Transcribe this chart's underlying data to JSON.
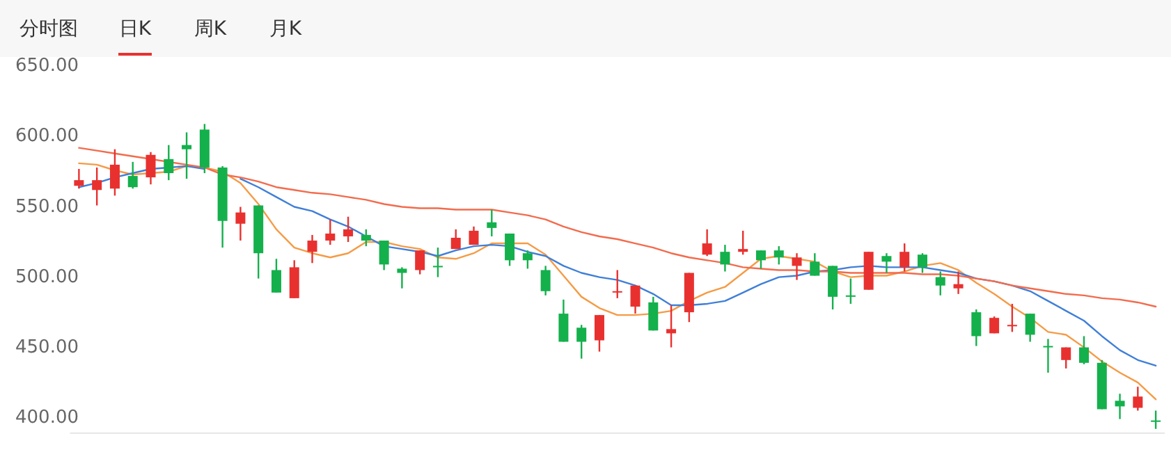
{
  "chart_data": {
    "type": "candlestick",
    "annotations": [
      "分时图",
      "日K",
      "周K",
      "月K"
    ],
    "categories": [
      null,
      null,
      null,
      null,
      null,
      null,
      null,
      null,
      null,
      null,
      null,
      null,
      null,
      null,
      null,
      null,
      null,
      null,
      null,
      null,
      null,
      null,
      null,
      null,
      null,
      null,
      null,
      null,
      null,
      null,
      null,
      null,
      null,
      null,
      null,
      null,
      null,
      null,
      null,
      null,
      null,
      null,
      null,
      null,
      null,
      null,
      null,
      null,
      null,
      null,
      null,
      null,
      null,
      null,
      null,
      null,
      null,
      null,
      null,
      null,
      null
    ],
    "ohlc": [
      [
        564,
        576,
        562,
        568
      ],
      [
        561,
        577,
        550,
        568
      ],
      [
        562,
        590,
        557,
        579
      ],
      [
        571,
        581,
        562,
        563
      ],
      [
        570,
        588,
        565,
        586
      ],
      [
        583,
        593,
        568,
        573
      ],
      [
        593,
        602,
        569,
        590
      ],
      [
        604,
        608,
        573,
        577
      ],
      [
        577,
        578,
        520,
        539
      ],
      [
        537,
        549,
        525,
        545
      ],
      [
        550,
        550,
        498,
        516
      ],
      [
        504,
        512,
        488,
        488
      ],
      [
        484,
        511,
        484,
        506
      ],
      [
        517,
        529,
        509,
        525
      ],
      [
        525,
        540,
        522,
        530
      ],
      [
        528,
        542,
        524,
        533
      ],
      [
        529,
        533,
        521,
        525
      ],
      [
        525,
        525,
        504,
        508
      ],
      [
        505,
        506,
        491,
        502
      ],
      [
        504,
        518,
        501,
        518
      ],
      [
        507,
        520,
        499,
        506
      ],
      [
        519,
        533,
        519,
        527
      ],
      [
        522,
        535,
        522,
        532
      ],
      [
        538,
        547,
        528,
        534
      ],
      [
        530,
        530,
        507,
        511
      ],
      [
        516,
        518,
        505,
        511
      ],
      [
        504,
        507,
        486,
        489
      ],
      [
        473,
        483,
        453,
        453
      ],
      [
        463,
        465,
        441,
        453
      ],
      [
        454,
        472,
        446,
        472
      ],
      [
        488,
        504,
        484,
        489
      ],
      [
        478,
        493,
        473,
        493
      ],
      [
        481,
        485,
        461,
        461
      ],
      [
        459,
        479,
        449,
        462
      ],
      [
        474,
        502,
        467,
        502
      ],
      [
        515,
        533,
        514,
        523
      ],
      [
        517,
        522,
        503,
        508
      ],
      [
        517,
        532,
        515,
        519
      ],
      [
        518,
        518,
        505,
        511
      ],
      [
        518,
        521,
        508,
        513
      ],
      [
        507,
        516,
        497,
        513
      ],
      [
        510,
        516,
        500,
        500
      ],
      [
        507,
        507,
        476,
        485
      ],
      [
        486,
        498,
        480,
        485
      ],
      [
        490,
        517,
        490,
        517
      ],
      [
        514,
        516,
        502,
        510
      ],
      [
        506,
        523,
        503,
        517
      ],
      [
        515,
        516,
        502,
        506
      ],
      [
        499,
        503,
        486,
        493
      ],
      [
        491,
        503,
        487,
        494
      ],
      [
        474,
        476,
        450,
        457
      ],
      [
        459,
        471,
        459,
        470
      ],
      [
        464,
        480,
        460,
        465
      ],
      [
        473,
        473,
        453,
        458
      ],
      [
        450,
        455,
        431,
        449
      ],
      [
        440,
        449,
        434,
        449
      ],
      [
        449,
        457,
        437,
        438
      ],
      [
        438,
        440,
        405,
        405
      ],
      [
        411,
        416,
        398,
        407
      ],
      [
        406,
        421,
        404,
        414
      ],
      [
        397,
        404,
        391,
        396
      ]
    ],
    "colors": [
      "#e8312f",
      "#e8312f",
      "#e8312f",
      "#14b04c",
      "#e8312f",
      "#14b04c",
      "#14b04c",
      "#14b04c",
      "#14b04c",
      "#e8312f",
      "#14b04c",
      "#14b04c",
      "#e8312f",
      "#e8312f",
      "#e8312f",
      "#e8312f",
      "#14b04c",
      "#14b04c",
      "#14b04c",
      "#e8312f",
      "#14b04c",
      "#e8312f",
      "#e8312f",
      "#14b04c",
      "#14b04c",
      "#14b04c",
      "#14b04c",
      "#14b04c",
      "#14b04c",
      "#e8312f",
      "#e8312f",
      "#e8312f",
      "#14b04c",
      "#e8312f",
      "#e8312f",
      "#e8312f",
      "#14b04c",
      "#e8312f",
      "#14b04c",
      "#14b04c",
      "#e8312f",
      "#14b04c",
      "#14b04c",
      "#14b04c",
      "#e8312f",
      "#14b04c",
      "#e8312f",
      "#14b04c",
      "#14b04c",
      "#e8312f",
      "#14b04c",
      "#e8312f",
      "#e8312f",
      "#14b04c",
      "#14b04c",
      "#e8312f",
      "#14b04c",
      "#14b04c",
      "#14b04c",
      "#e8312f",
      "#14b04c"
    ],
    "series": [
      {
        "type": "line",
        "color": "#f59b45",
        "values": [
          580,
          579,
          575,
          572,
          573,
          574,
          578,
          577,
          574,
          566,
          551,
          533,
          520,
          516,
          513,
          516,
          524,
          524,
          521,
          519,
          513,
          512,
          516,
          523,
          523,
          523,
          515,
          500,
          485,
          477,
          472,
          472,
          473,
          475,
          482,
          488,
          492,
          502,
          512,
          514,
          512,
          510,
          503,
          499,
          500,
          500,
          503,
          507,
          509,
          504,
          495,
          487,
          478,
          470,
          460,
          458,
          449,
          439,
          431,
          424,
          412
        ]
      },
      {
        "type": "line",
        "color": "#3f7fd8",
        "values": [
          563,
          566,
          570,
          573,
          576,
          577,
          578,
          576,
          null,
          569,
          563,
          556,
          549,
          546,
          540,
          535,
          528,
          521,
          519,
          517,
          514,
          518,
          521,
          522,
          521,
          517,
          514,
          507,
          502,
          499,
          497,
          493,
          487,
          479,
          479,
          480,
          482,
          488,
          494,
          499,
          500,
          503,
          504,
          506,
          507,
          506,
          506,
          506,
          504,
          502,
          498,
          496,
          493,
          489,
          482,
          475,
          468,
          457,
          447,
          440,
          436
        ]
      },
      {
        "type": "line",
        "color": "#f36b4d",
        "values": [
          591,
          589,
          587,
          585,
          583,
          581,
          579,
          577,
          572,
          570,
          567,
          563,
          561,
          559,
          558,
          556,
          554,
          551,
          549,
          548,
          548,
          547,
          547,
          547,
          545,
          543,
          540,
          535,
          531,
          528,
          526,
          523,
          520,
          516,
          513,
          511,
          509,
          506,
          505,
          504,
          504,
          503,
          503,
          502,
          502,
          502,
          502,
          501,
          501,
          500,
          498,
          496,
          493,
          491,
          489,
          487,
          486,
          484,
          483,
          481,
          478
        ]
      }
    ],
    "ylim": [
      388,
      650
    ],
    "yticks": [
      {
        "value": 400,
        "label": "400.00"
      },
      {
        "value": 450,
        "label": "450.00"
      },
      {
        "value": 500,
        "label": "500.00"
      },
      {
        "value": 550,
        "label": "550.00"
      },
      {
        "value": 600,
        "label": "600.00"
      },
      {
        "value": 650,
        "label": "650.00"
      }
    ],
    "grid": false
  }
}
